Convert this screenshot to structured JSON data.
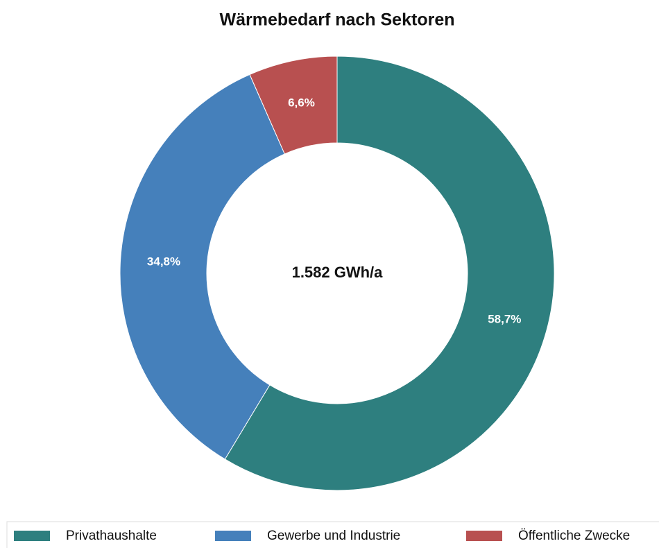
{
  "chart_data": {
    "type": "donut",
    "title": "Wärmebedarf nach Sektoren",
    "center_label": "1.582 GWh/a",
    "categories": [
      "Privathaushalte",
      "Gewerbe und Industrie",
      "Öffentliche Zwecke"
    ],
    "values": [
      58.7,
      34.8,
      6.6
    ],
    "value_labels": [
      "58,7%",
      "34,8%",
      "6,6%"
    ],
    "colors": [
      "#2e7f7f",
      "#4580bb",
      "#b85050"
    ],
    "legend": "bottom"
  }
}
